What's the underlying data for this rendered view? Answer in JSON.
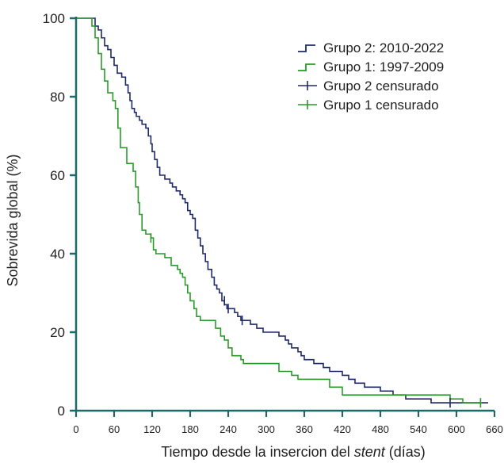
{
  "chart_data": {
    "type": "line",
    "xlabel_prefix": "Tiempo desde la insercion del ",
    "xlabel_italic": "stent",
    "xlabel_suffix": " (días)",
    "ylabel": "Sobrevida global (%)",
    "xlim": [
      0,
      660
    ],
    "ylim": [
      0,
      100
    ],
    "xticks": [
      0,
      60,
      120,
      180,
      240,
      300,
      360,
      420,
      480,
      540,
      600,
      660
    ],
    "yticks": [
      0,
      20,
      40,
      60,
      80,
      100
    ],
    "grid": false,
    "legend_position": "top-right",
    "series": [
      {
        "name": "Grupo 2: 2010-2022",
        "color": "#1f2a6b",
        "points": [
          [
            0,
            100
          ],
          [
            25,
            100
          ],
          [
            30,
            98
          ],
          [
            35,
            97
          ],
          [
            40,
            95
          ],
          [
            45,
            93
          ],
          [
            50,
            92
          ],
          [
            55,
            90
          ],
          [
            60,
            88
          ],
          [
            65,
            86
          ],
          [
            72,
            85
          ],
          [
            78,
            83
          ],
          [
            82,
            81
          ],
          [
            85,
            79
          ],
          [
            88,
            77
          ],
          [
            92,
            76
          ],
          [
            95,
            75
          ],
          [
            100,
            74
          ],
          [
            104,
            73
          ],
          [
            110,
            72
          ],
          [
            114,
            70
          ],
          [
            118,
            68
          ],
          [
            120,
            66
          ],
          [
            124,
            64
          ],
          [
            128,
            62
          ],
          [
            132,
            60
          ],
          [
            140,
            59
          ],
          [
            148,
            58
          ],
          [
            152,
            57
          ],
          [
            158,
            56
          ],
          [
            164,
            55
          ],
          [
            168,
            54
          ],
          [
            172,
            53
          ],
          [
            176,
            51
          ],
          [
            180,
            50
          ],
          [
            184,
            49
          ],
          [
            188,
            46
          ],
          [
            192,
            44
          ],
          [
            196,
            42
          ],
          [
            200,
            40
          ],
          [
            204,
            38
          ],
          [
            208,
            36
          ],
          [
            214,
            34
          ],
          [
            218,
            32
          ],
          [
            222,
            31
          ],
          [
            226,
            30
          ],
          [
            230,
            28
          ],
          [
            234,
            27
          ],
          [
            238,
            26
          ],
          [
            250,
            25
          ],
          [
            255,
            24
          ],
          [
            260,
            23
          ],
          [
            275,
            22
          ],
          [
            285,
            21
          ],
          [
            295,
            20
          ],
          [
            320,
            19
          ],
          [
            330,
            18
          ],
          [
            335,
            17
          ],
          [
            340,
            16
          ],
          [
            350,
            15
          ],
          [
            355,
            14
          ],
          [
            360,
            13
          ],
          [
            375,
            12
          ],
          [
            390,
            11
          ],
          [
            400,
            10
          ],
          [
            420,
            9
          ],
          [
            430,
            8
          ],
          [
            440,
            7
          ],
          [
            455,
            6
          ],
          [
            480,
            5
          ],
          [
            500,
            4
          ],
          [
            520,
            3
          ],
          [
            560,
            2
          ],
          [
            650,
            2
          ]
        ],
        "censored": [
          [
            234,
            28
          ],
          [
            240,
            26
          ],
          [
            262,
            23
          ],
          [
            590,
            2
          ]
        ]
      },
      {
        "name": "Grupo 1: 1997-2009",
        "color": "#2a9a2a",
        "points": [
          [
            0,
            100
          ],
          [
            20,
            100
          ],
          [
            25,
            98
          ],
          [
            30,
            95
          ],
          [
            35,
            91
          ],
          [
            40,
            87
          ],
          [
            45,
            84
          ],
          [
            50,
            81
          ],
          [
            58,
            79
          ],
          [
            62,
            77
          ],
          [
            66,
            72
          ],
          [
            70,
            67
          ],
          [
            80,
            63
          ],
          [
            90,
            61
          ],
          [
            94,
            57
          ],
          [
            98,
            53
          ],
          [
            100,
            50
          ],
          [
            104,
            46
          ],
          [
            110,
            45
          ],
          [
            118,
            44
          ],
          [
            122,
            41
          ],
          [
            126,
            40
          ],
          [
            140,
            39
          ],
          [
            150,
            37
          ],
          [
            160,
            36
          ],
          [
            164,
            35
          ],
          [
            168,
            34
          ],
          [
            172,
            32
          ],
          [
            176,
            30
          ],
          [
            180,
            28
          ],
          [
            186,
            26
          ],
          [
            190,
            24
          ],
          [
            196,
            23
          ],
          [
            220,
            21
          ],
          [
            228,
            19
          ],
          [
            234,
            18
          ],
          [
            240,
            16
          ],
          [
            246,
            14
          ],
          [
            260,
            13
          ],
          [
            264,
            12
          ],
          [
            310,
            12
          ],
          [
            320,
            10
          ],
          [
            340,
            9
          ],
          [
            350,
            8
          ],
          [
            400,
            6
          ],
          [
            420,
            4
          ],
          [
            450,
            4
          ],
          [
            590,
            3
          ],
          [
            610,
            2
          ],
          [
            640,
            2
          ]
        ],
        "censored": [
          [
            118,
            44
          ],
          [
            638,
            2
          ]
        ]
      }
    ],
    "legend_entries": [
      {
        "label": "Grupo 2: 2010-2022",
        "kind": "line",
        "color": "#1f2a6b"
      },
      {
        "label": "Grupo 1: 1997-2009",
        "kind": "line",
        "color": "#2a9a2a"
      },
      {
        "label": "Grupo 2 censurado",
        "kind": "censor",
        "color": "#1f2a6b"
      },
      {
        "label": "Grupo 1 censurado",
        "kind": "censor",
        "color": "#2a9a2a"
      }
    ],
    "axis_color": "#1d6a6a"
  }
}
